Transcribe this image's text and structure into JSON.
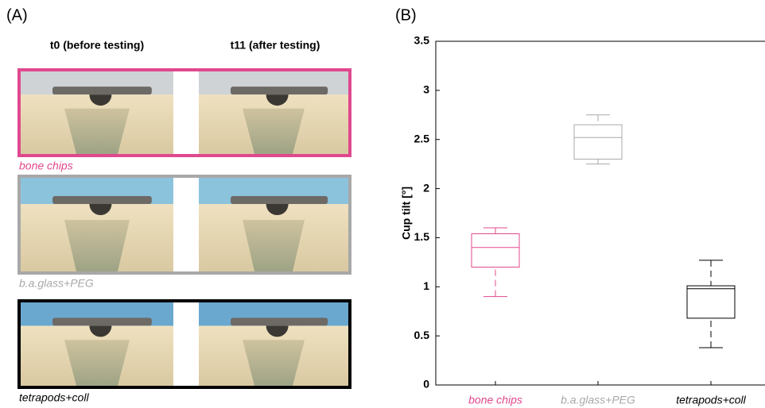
{
  "panel_a": {
    "label": "(A)",
    "columns": [
      "t0 (before testing)",
      "t11 (after testing)"
    ],
    "groups": [
      {
        "name": "bone chips",
        "color": "#e0488e"
      },
      {
        "name": "b.a.glass+PEG",
        "color": "#a8a8a8"
      },
      {
        "name": "tetrapods+coll",
        "color": "#000000"
      }
    ]
  },
  "chart_data": {
    "type": "box",
    "panel_label": "(B)",
    "y_label": "Cup tilt [°]",
    "categories": [
      "bone chips",
      "b.a.glass+PEG",
      "tetrapods+coll"
    ],
    "colors": [
      "#e0488e",
      "#a8a8a8",
      "#000000"
    ],
    "whisker_low": [
      0.9,
      2.25,
      0.38
    ],
    "q1": [
      1.2,
      2.3,
      0.68
    ],
    "median": [
      1.4,
      2.52,
      0.98
    ],
    "q3": [
      1.54,
      2.65,
      1.01
    ],
    "whisker_high": [
      1.6,
      2.75,
      1.27
    ],
    "ylim": [
      0,
      3.5
    ],
    "yticks": [
      0,
      0.5,
      1,
      1.5,
      2,
      2.5,
      3,
      3.5
    ]
  }
}
